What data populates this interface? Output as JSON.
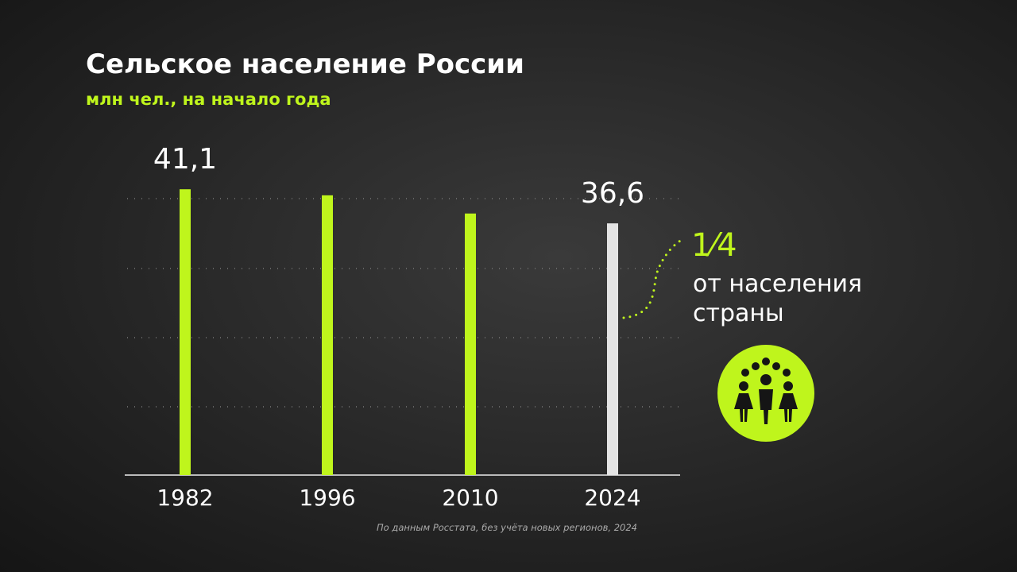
{
  "chart_data": {
    "type": "bar",
    "title": "Сельское население России",
    "subtitle": "млн чел., на начало года",
    "categories": [
      "1982",
      "1996",
      "2010",
      "2024"
    ],
    "values": [
      41.1,
      40.3,
      37.9,
      36.6
    ],
    "value_labels": [
      "41,1",
      null,
      null,
      "36,6"
    ],
    "colors": [
      "#bff51c",
      "#bff51c",
      "#bff51c",
      "#e4e4e4"
    ],
    "ylim": [
      3.4,
      47.2
    ],
    "annotation": {
      "fraction": "1⁄4",
      "lines": [
        "от населения",
        "страны"
      ]
    },
    "source": "По данным Росстата, без учёта новых регионов, 2024"
  }
}
